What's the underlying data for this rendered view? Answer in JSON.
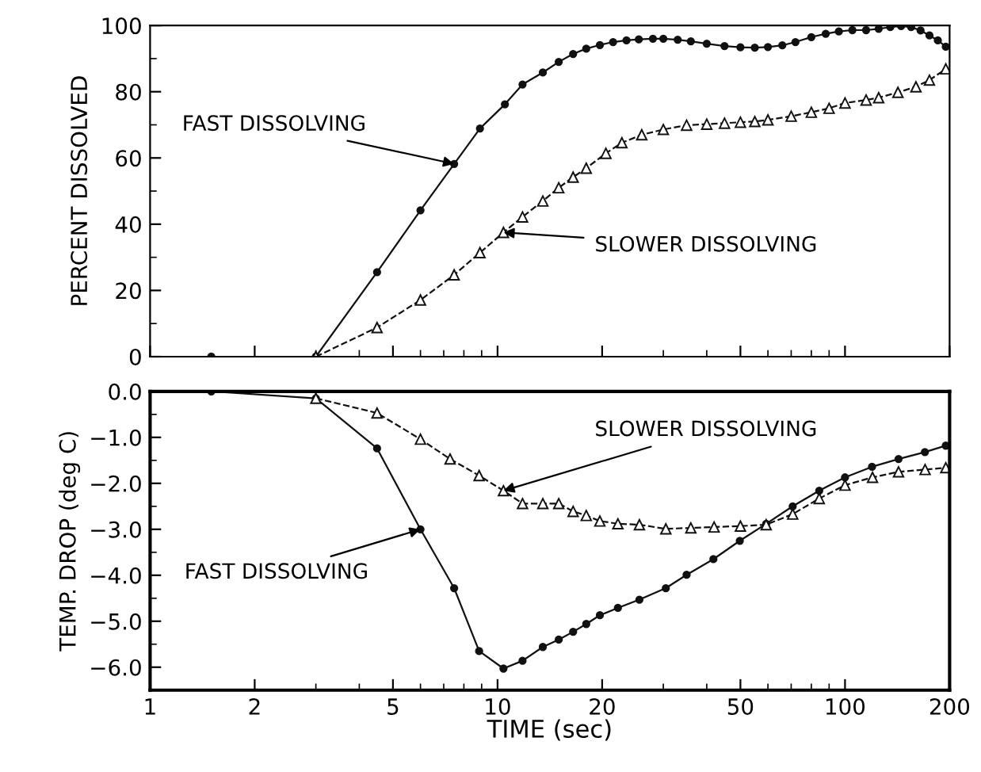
{
  "chart_data": [
    {
      "type": "line",
      "ylabel": "PERCENT DISSOLVED",
      "xlim": [
        1,
        200
      ],
      "ylim": [
        0,
        100
      ],
      "log": "x",
      "yticks": [
        0,
        20,
        40,
        60,
        80,
        100
      ],
      "xticks": [
        1,
        2,
        5,
        10,
        20,
        50,
        100,
        200
      ],
      "tick_labels": "y",
      "grid": false,
      "legend": false,
      "series": [
        {
          "color": "#111111",
          "marker": "circle",
          "line_style": "solid",
          "x": [
            1.5,
            3,
            4.5,
            6,
            7.5,
            8.9,
            10.5,
            11.8,
            13.5,
            15,
            16.5,
            18,
            19.7,
            21.5,
            23.5,
            25.5,
            28,
            30,
            33,
            36,
            40,
            45,
            50,
            55,
            60,
            66,
            72,
            80,
            88,
            96,
            105,
            115,
            125,
            135,
            145,
            155,
            165,
            175,
            185,
            195
          ],
          "values": [
            0,
            0,
            25.5,
            44.2,
            58.2,
            68.9,
            76.2,
            82.2,
            85.8,
            89,
            91.4,
            93,
            94.1,
            95,
            95.5,
            95.8,
            96,
            96,
            95.7,
            95.2,
            94.5,
            93.8,
            93.4,
            93.3,
            93.5,
            94,
            95,
            96.5,
            97.5,
            98.2,
            98.6,
            98.6,
            99,
            99.5,
            99.8,
            99.5,
            98.5,
            97,
            95.5,
            93.6
          ]
        },
        {
          "color": "#111111",
          "marker": "triangle",
          "line_style": "dashed",
          "x": [
            3,
            4.5,
            6,
            7.5,
            8.9,
            10.4,
            11.8,
            13.5,
            15,
            16.5,
            18,
            20.5,
            22.8,
            26,
            30,
            35,
            40,
            45,
            50,
            55,
            60,
            70,
            80,
            90,
            100,
            115,
            125,
            142,
            160,
            175,
            195
          ],
          "values": [
            0,
            8.8,
            17.1,
            24.7,
            31.4,
            37.5,
            42.2,
            47,
            51,
            54.2,
            56.9,
            61.4,
            64.6,
            67,
            68.6,
            69.9,
            70.2,
            70.5,
            70.8,
            71,
            71.5,
            72.6,
            73.8,
            75,
            76.6,
            77.5,
            78.2,
            79.8,
            81.5,
            83.5,
            86.9
          ]
        }
      ],
      "annotations": [
        {
          "text": "FAST DISSOLVING",
          "x": 7.5,
          "y": 58.2
        },
        {
          "text": "SLOWER DISSOLVING",
          "x": 10.4,
          "y": 37.5
        }
      ]
    },
    {
      "type": "line",
      "ylabel": "TEMP. DROP (deg C)",
      "xlabel": "TIME (sec)",
      "xlim": [
        1,
        200
      ],
      "ylim": [
        -6.5,
        0
      ],
      "log": "x",
      "yticks": [
        {
          "value": 0,
          "label": "0.0"
        },
        {
          "value": -1,
          "label": "−1.0"
        },
        {
          "value": -2,
          "label": "−2.0"
        },
        {
          "value": -3,
          "label": "−3.0"
        },
        {
          "value": -4,
          "label": "−4.0"
        },
        {
          "value": -5,
          "label": "−5.0"
        },
        {
          "value": -6,
          "label": "−6.0"
        }
      ],
      "xticks": [
        1,
        2,
        5,
        10,
        20,
        50,
        100,
        200
      ],
      "grid": false,
      "legend": false,
      "series": [
        {
          "color": "#111111",
          "marker": "circle",
          "line_style": "solid",
          "x": [
            1.5,
            3,
            4.5,
            6,
            7.5,
            8.85,
            10.4,
            11.8,
            13.5,
            15,
            16.5,
            18,
            19.7,
            22.2,
            25.6,
            30.5,
            35,
            41.8,
            49.8,
            59.3,
            70.7,
            84.3,
            100,
            119.6,
            142.6,
            169.8,
            195
          ],
          "values": [
            0,
            -0.15,
            -1.24,
            -3.0,
            -4.28,
            -5.65,
            -6.03,
            -5.86,
            -5.56,
            -5.4,
            -5.23,
            -5.06,
            -4.87,
            -4.71,
            -4.53,
            -4.28,
            -3.99,
            -3.65,
            -3.25,
            -2.88,
            -2.5,
            -2.16,
            -1.87,
            -1.64,
            -1.47,
            -1.32,
            -1.18
          ]
        },
        {
          "color": "#111111",
          "marker": "triangle",
          "line_style": "dashed",
          "x": [
            3,
            4.5,
            6,
            7.3,
            8.85,
            10.4,
            11.8,
            13.5,
            15,
            16.5,
            18,
            19.7,
            22.2,
            25.6,
            30.5,
            36,
            42,
            50,
            59.3,
            70.7,
            84.3,
            100,
            120,
            142.6,
            170,
            195
          ],
          "values": [
            -0.15,
            -0.47,
            -1.04,
            -1.47,
            -1.83,
            -2.16,
            -2.44,
            -2.44,
            -2.44,
            -2.61,
            -2.7,
            -2.82,
            -2.88,
            -2.9,
            -2.99,
            -2.97,
            -2.95,
            -2.93,
            -2.9,
            -2.67,
            -2.33,
            -2.04,
            -1.87,
            -1.75,
            -1.7,
            -1.66
          ]
        }
      ],
      "annotations": [
        {
          "text": "SLOWER DISSOLVING",
          "x": 10.4,
          "y": -2.16
        },
        {
          "text": "FAST DISSOLVING",
          "x": 6,
          "y": -3.0
        }
      ]
    }
  ]
}
